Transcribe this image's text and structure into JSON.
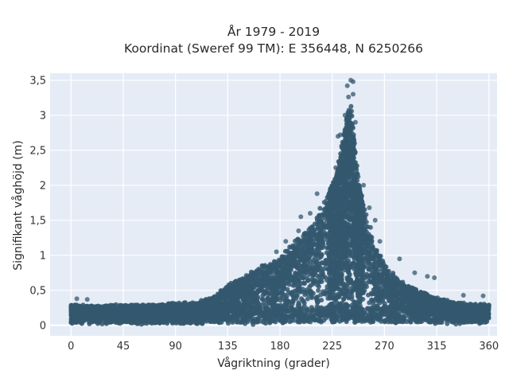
{
  "chart_data": {
    "type": "scatter",
    "title_lines": [
      "År 1979 - 2019",
      "Koordinat (Sweref 99 TM): E 356448, N 6250266"
    ],
    "xlabel": "Vågriktning (grader)",
    "ylabel": "Signifikant våghöjd (m)",
    "xlim": [
      -18,
      367
    ],
    "ylim": [
      -0.15,
      3.6
    ],
    "x_ticks": [
      0,
      45,
      90,
      135,
      180,
      225,
      270,
      315,
      360
    ],
    "x_tick_labels": [
      "0",
      "45",
      "90",
      "135",
      "180",
      "225",
      "270",
      "315",
      "360"
    ],
    "y_ticks": [
      0,
      0.5,
      1,
      1.5,
      2,
      2.5,
      3,
      3.5
    ],
    "y_tick_labels": [
      "0",
      "0,5",
      "1",
      "1,5",
      "2",
      "2,5",
      "3",
      "3,5"
    ],
    "grid": true,
    "plot_background": "#e5ecf6",
    "marker_color": "#34586e",
    "envelope": {
      "description_direction_deg": [
        0,
        20,
        45,
        70,
        90,
        110,
        125,
        140,
        160,
        180,
        195,
        210,
        220,
        228,
        233,
        238,
        241,
        244,
        248,
        255,
        265,
        275,
        290,
        305,
        320,
        340,
        360
      ],
      "typical_max_height_m": [
        0.28,
        0.27,
        0.28,
        0.28,
        0.3,
        0.32,
        0.42,
        0.62,
        0.78,
        0.95,
        1.2,
        1.45,
        1.8,
        2.1,
        2.5,
        3.0,
        3.2,
        2.6,
        2.0,
        1.5,
        1.0,
        0.75,
        0.55,
        0.45,
        0.35,
        0.3,
        0.28
      ]
    },
    "notable_points": [
      {
        "x": 241,
        "y": 3.5
      },
      {
        "x": 243,
        "y": 3.48
      },
      {
        "x": 238,
        "y": 3.42
      },
      {
        "x": 243,
        "y": 3.3
      },
      {
        "x": 239,
        "y": 3.26
      },
      {
        "x": 236,
        "y": 3.0
      },
      {
        "x": 245,
        "y": 2.9
      },
      {
        "x": 232,
        "y": 2.72
      },
      {
        "x": 230,
        "y": 2.7
      },
      {
        "x": 228,
        "y": 2.25
      },
      {
        "x": 227,
        "y": 2.05
      },
      {
        "x": 212,
        "y": 1.88
      },
      {
        "x": 220,
        "y": 1.78
      },
      {
        "x": 206,
        "y": 1.6
      },
      {
        "x": 198,
        "y": 1.55
      },
      {
        "x": 252,
        "y": 2.0
      },
      {
        "x": 257,
        "y": 1.68
      },
      {
        "x": 262,
        "y": 1.5
      },
      {
        "x": 266,
        "y": 1.2
      },
      {
        "x": 283,
        "y": 0.95
      },
      {
        "x": 296,
        "y": 0.75
      },
      {
        "x": 307,
        "y": 0.7
      },
      {
        "x": 313,
        "y": 0.68
      },
      {
        "x": 196,
        "y": 1.35
      },
      {
        "x": 185,
        "y": 1.2
      },
      {
        "x": 177,
        "y": 1.05
      },
      {
        "x": 338,
        "y": 0.43
      },
      {
        "x": 355,
        "y": 0.42
      },
      {
        "x": 5,
        "y": 0.38
      },
      {
        "x": 14,
        "y": 0.37
      }
    ]
  }
}
